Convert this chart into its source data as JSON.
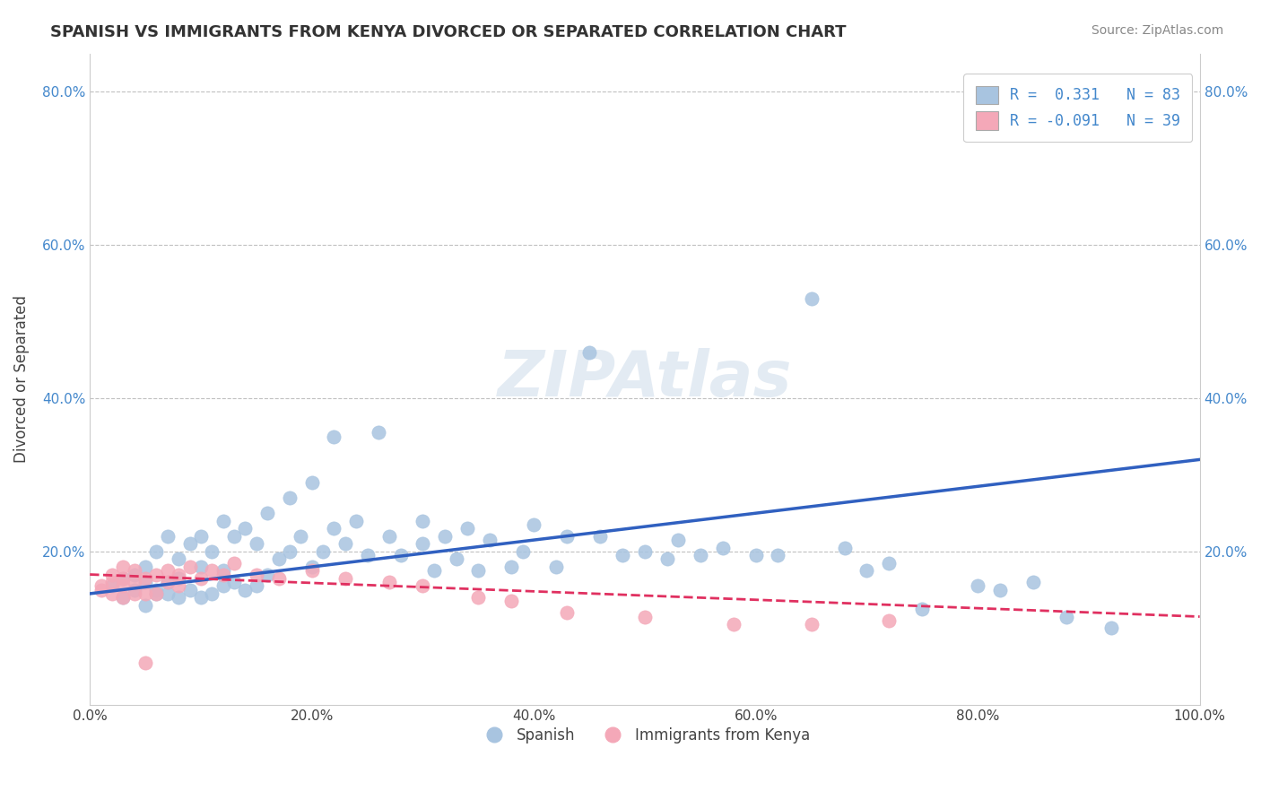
{
  "title": "SPANISH VS IMMIGRANTS FROM KENYA DIVORCED OR SEPARATED CORRELATION CHART",
  "source": "Source: ZipAtlas.com",
  "xlabel": "",
  "ylabel": "Divorced or Separated",
  "xlim": [
    0,
    1.0
  ],
  "ylim": [
    0,
    0.85
  ],
  "xticks": [
    0.0,
    0.2,
    0.4,
    0.6,
    0.8,
    1.0
  ],
  "xtick_labels": [
    "0.0%",
    "20.0%",
    "40.0%",
    "60.0%",
    "80.0%",
    "100.0%"
  ],
  "yticks": [
    0.0,
    0.2,
    0.4,
    0.6,
    0.8
  ],
  "ytick_labels": [
    "",
    "20.0%",
    "40.0%",
    "60.0%",
    "80.0%"
  ],
  "legend_r1": "R =  0.331   N = 83",
  "legend_r2": "R = -0.091   N = 39",
  "blue_color": "#a8c4e0",
  "pink_color": "#f4a8b8",
  "line_blue": "#3060c0",
  "line_pink": "#e03060",
  "grid_color": "#c0c0c0",
  "watermark": "ZIPAtlas",
  "watermark_color": "#c8d8e8",
  "blue_scatter_x": [
    0.02,
    0.03,
    0.03,
    0.04,
    0.04,
    0.05,
    0.05,
    0.05,
    0.06,
    0.06,
    0.06,
    0.07,
    0.07,
    0.07,
    0.08,
    0.08,
    0.08,
    0.09,
    0.09,
    0.1,
    0.1,
    0.1,
    0.11,
    0.11,
    0.12,
    0.12,
    0.12,
    0.13,
    0.13,
    0.14,
    0.14,
    0.15,
    0.15,
    0.16,
    0.16,
    0.17,
    0.18,
    0.18,
    0.19,
    0.2,
    0.2,
    0.21,
    0.22,
    0.22,
    0.23,
    0.24,
    0.25,
    0.26,
    0.27,
    0.28,
    0.3,
    0.3,
    0.31,
    0.32,
    0.33,
    0.34,
    0.35,
    0.36,
    0.38,
    0.39,
    0.4,
    0.42,
    0.43,
    0.45,
    0.46,
    0.48,
    0.5,
    0.52,
    0.53,
    0.55,
    0.57,
    0.6,
    0.62,
    0.65,
    0.68,
    0.7,
    0.72,
    0.75,
    0.8,
    0.82,
    0.85,
    0.88,
    0.92
  ],
  "blue_scatter_y": [
    0.155,
    0.14,
    0.165,
    0.15,
    0.17,
    0.13,
    0.16,
    0.18,
    0.145,
    0.15,
    0.2,
    0.145,
    0.16,
    0.22,
    0.14,
    0.165,
    0.19,
    0.15,
    0.21,
    0.14,
    0.18,
    0.22,
    0.145,
    0.2,
    0.155,
    0.175,
    0.24,
    0.16,
    0.22,
    0.15,
    0.23,
    0.155,
    0.21,
    0.17,
    0.25,
    0.19,
    0.2,
    0.27,
    0.22,
    0.18,
    0.29,
    0.2,
    0.35,
    0.23,
    0.21,
    0.24,
    0.195,
    0.355,
    0.22,
    0.195,
    0.21,
    0.24,
    0.175,
    0.22,
    0.19,
    0.23,
    0.175,
    0.215,
    0.18,
    0.2,
    0.235,
    0.18,
    0.22,
    0.46,
    0.22,
    0.195,
    0.2,
    0.19,
    0.215,
    0.195,
    0.205,
    0.195,
    0.195,
    0.53,
    0.205,
    0.175,
    0.185,
    0.125,
    0.155,
    0.15,
    0.16,
    0.115,
    0.1
  ],
  "pink_scatter_x": [
    0.01,
    0.01,
    0.02,
    0.02,
    0.02,
    0.03,
    0.03,
    0.03,
    0.03,
    0.04,
    0.04,
    0.04,
    0.05,
    0.05,
    0.05,
    0.06,
    0.06,
    0.07,
    0.07,
    0.08,
    0.08,
    0.09,
    0.1,
    0.11,
    0.12,
    0.13,
    0.15,
    0.17,
    0.2,
    0.23,
    0.27,
    0.3,
    0.35,
    0.38,
    0.43,
    0.5,
    0.58,
    0.65,
    0.72
  ],
  "pink_scatter_y": [
    0.15,
    0.155,
    0.145,
    0.16,
    0.17,
    0.14,
    0.155,
    0.165,
    0.18,
    0.145,
    0.16,
    0.175,
    0.145,
    0.165,
    0.055,
    0.145,
    0.17,
    0.16,
    0.175,
    0.155,
    0.17,
    0.18,
    0.165,
    0.175,
    0.17,
    0.185,
    0.17,
    0.165,
    0.175,
    0.165,
    0.16,
    0.155,
    0.14,
    0.135,
    0.12,
    0.115,
    0.105,
    0.105,
    0.11
  ],
  "blue_line_x": [
    0.0,
    1.0
  ],
  "blue_line_y_start": 0.145,
  "blue_line_y_end": 0.32,
  "pink_line_x": [
    0.0,
    1.0
  ],
  "pink_line_y_start": 0.17,
  "pink_line_y_end": 0.115
}
